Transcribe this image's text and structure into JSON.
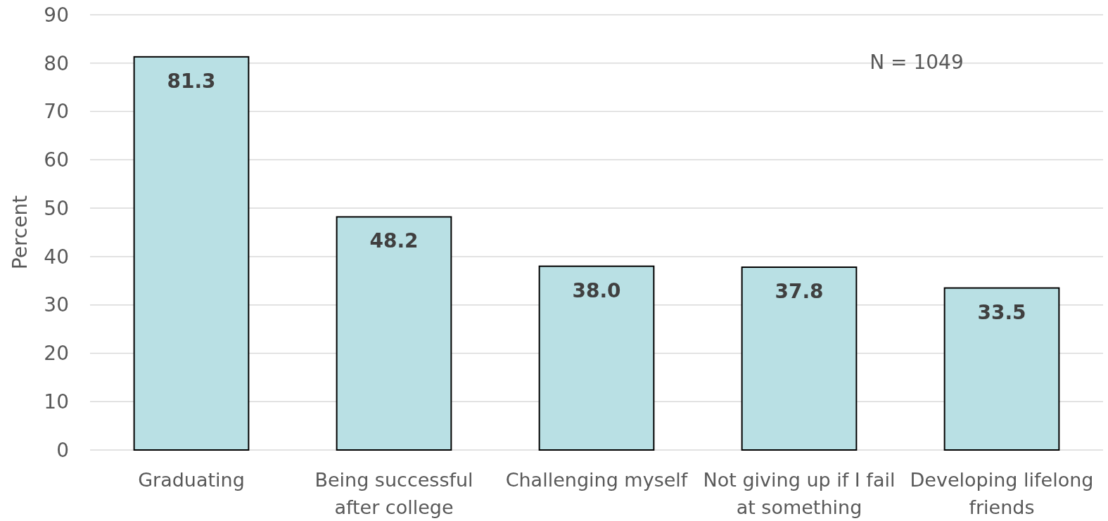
{
  "chart_data": {
    "type": "bar",
    "ylabel": "Percent",
    "categories": [
      "Graduating",
      "Being successful after college",
      "Challenging myself",
      "Not giving up if I fail at something",
      "Developing lifelong friends"
    ],
    "values": [
      81.3,
      48.2,
      38.0,
      37.8,
      33.5
    ],
    "value_labels": [
      "81.3",
      "48.2",
      "38.0",
      "37.8",
      "33.5"
    ],
    "color": "#b9e0e4",
    "ylim": [
      0,
      90
    ],
    "yticks": [
      0,
      10,
      20,
      30,
      40,
      50,
      60,
      70,
      80,
      90
    ],
    "grid": "y",
    "annotations": [
      "N = 1049"
    ]
  }
}
